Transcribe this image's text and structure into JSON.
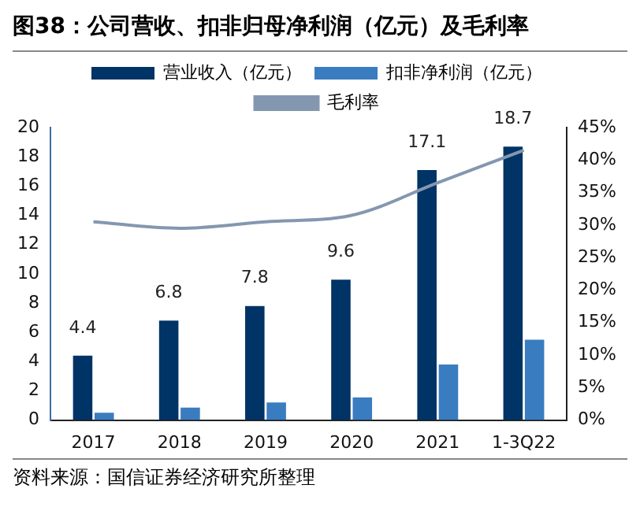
{
  "chart_data": {
    "type": "bar",
    "title": "图38：公司营收、扣非归母净利润（亿元）及毛利率",
    "categories": [
      "2017",
      "2018",
      "2019",
      "2020",
      "2021",
      "1-3Q22"
    ],
    "series": [
      {
        "name": "营业收入（亿元）",
        "color": "#003366",
        "values": [
          4.4,
          6.8,
          7.8,
          9.6,
          17.1,
          18.7
        ],
        "value_labels": [
          "4.4",
          "6.8",
          "7.8",
          "9.6",
          "17.1",
          "18.7"
        ]
      },
      {
        "name": "扣非净利润（亿元）",
        "color": "#3a7cc0",
        "values": [
          0.5,
          0.85,
          1.2,
          1.55,
          3.8,
          5.5
        ]
      },
      {
        "name": "毛利率",
        "type": "line",
        "axis": "y2",
        "color": "#8497b0",
        "values": [
          30.5,
          29.5,
          30.5,
          31.5,
          36.5,
          41.5
        ]
      }
    ],
    "ylim": [
      0,
      20
    ],
    "yticks": [
      0,
      2,
      4,
      6,
      8,
      10,
      12,
      14,
      16,
      18,
      20
    ],
    "y2lim": [
      0,
      45
    ],
    "y2ticks": [
      {
        "value": 0,
        "label": "0%"
      },
      {
        "value": 5,
        "label": "5%"
      },
      {
        "value": 10,
        "label": "10%"
      },
      {
        "value": 15,
        "label": "15%"
      },
      {
        "value": 20,
        "label": "20%"
      },
      {
        "value": 25,
        "label": "25%"
      },
      {
        "value": 30,
        "label": "30%"
      },
      {
        "value": 35,
        "label": "35%"
      },
      {
        "value": 40,
        "label": "40%"
      },
      {
        "value": 45,
        "label": "45%"
      }
    ],
    "legend": "top",
    "marker": "none",
    "grid": false,
    "annotations": [
      "资料来源：国信证券经济研究所整理"
    ]
  }
}
